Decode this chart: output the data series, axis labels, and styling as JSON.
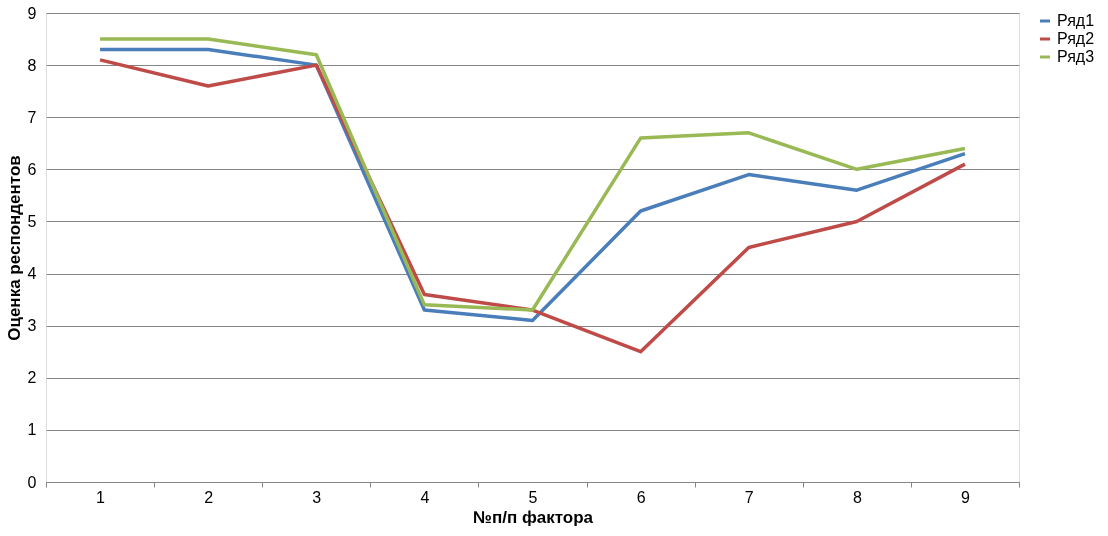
{
  "chart_data": {
    "type": "line",
    "xlabel": "№п/п фактора",
    "ylabel": "Оценка респондентов",
    "categories": [
      "1",
      "2",
      "3",
      "4",
      "5",
      "6",
      "7",
      "8",
      "9"
    ],
    "series": [
      {
        "name": "Ряд1",
        "color": "#4a7ebb",
        "values": [
          8.3,
          8.3,
          8.0,
          3.3,
          3.1,
          5.2,
          5.9,
          5.6,
          6.3
        ]
      },
      {
        "name": "Ряд2",
        "color": "#be4b48",
        "values": [
          8.1,
          7.6,
          8.0,
          3.6,
          3.3,
          2.5,
          4.5,
          5.0,
          6.1
        ]
      },
      {
        "name": "Ряд3",
        "color": "#98b954",
        "values": [
          8.5,
          8.5,
          8.2,
          3.4,
          3.3,
          6.6,
          6.7,
          6.0,
          6.4
        ]
      }
    ],
    "ylim": [
      0,
      9
    ],
    "yticks": [
      0,
      1,
      2,
      3,
      4,
      5,
      6,
      7,
      8,
      9
    ],
    "grid": "y",
    "legend": "right",
    "marker": "none",
    "line_style": "solid"
  }
}
